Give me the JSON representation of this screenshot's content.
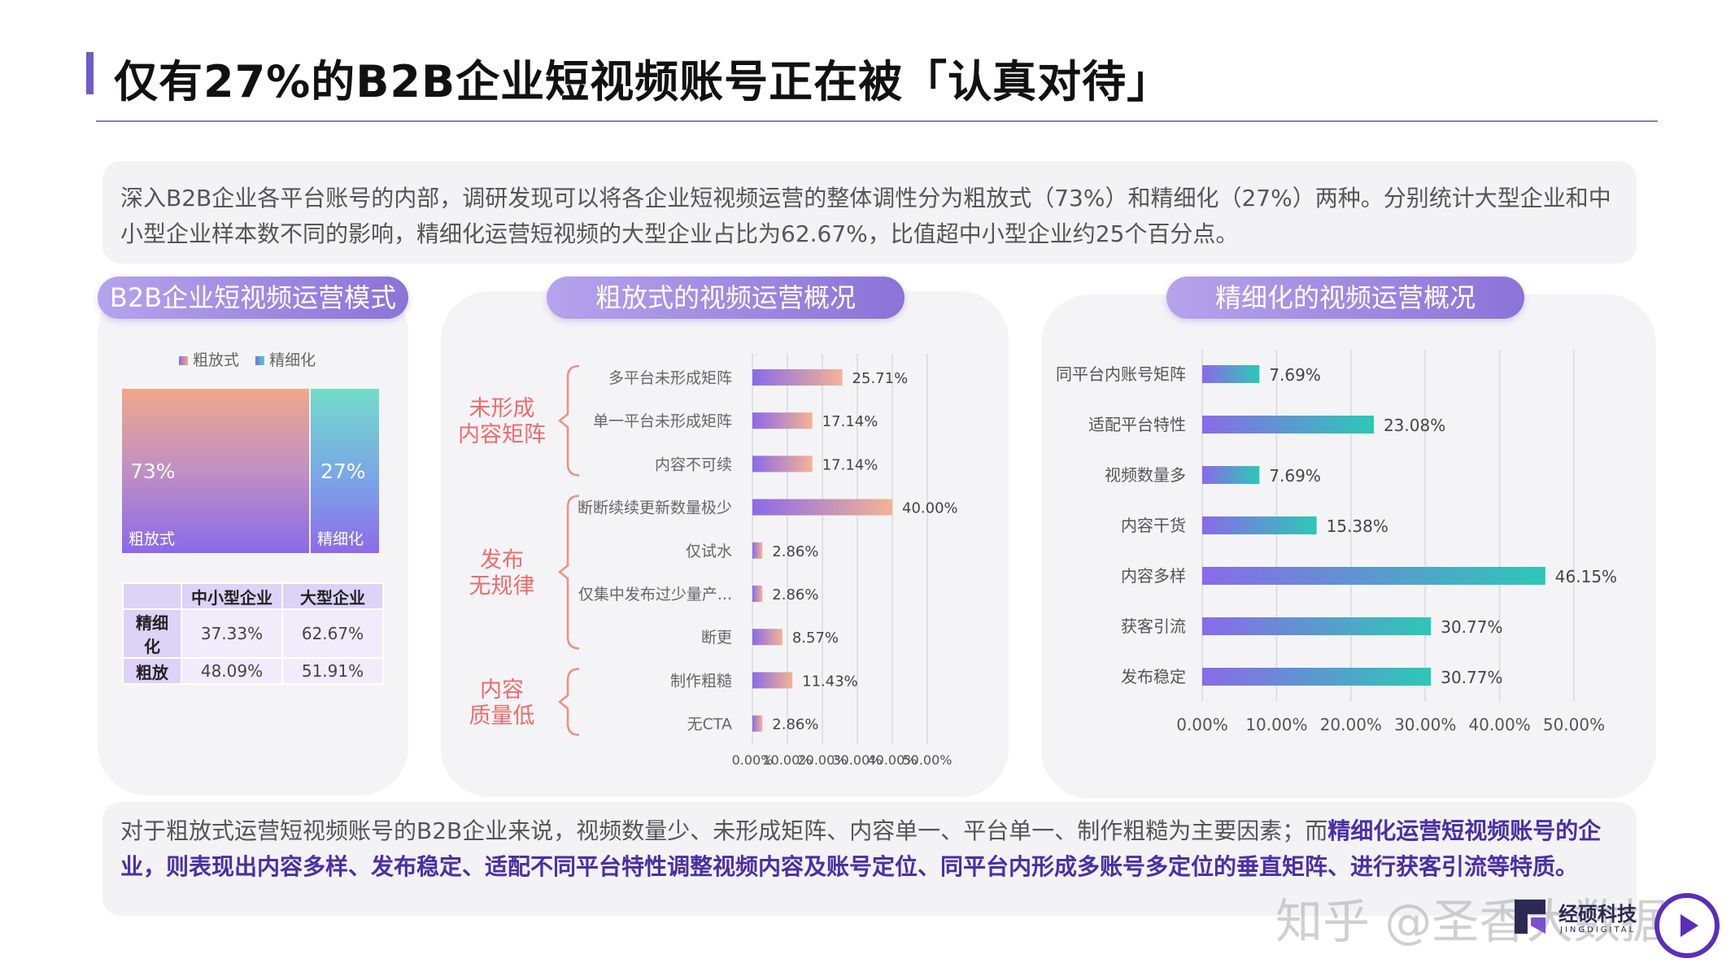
{
  "title": "仅有27%的B2B企业短视频账号正在被「认真对待」",
  "intro": "深入B2B企业各平台账号的内部，调研发现可以将各企业短视频运营的整体调性分为粗放式（73%）和精细化（27%）两种。分别统计大型企业和中小型企业样本数不同的影响，精细化运营短视频的大型企业占比为62.67%，比值超中小型企业约25个百分点。",
  "panels": {
    "left_title": "B2B企业短视频运营模式",
    "mid_title": "粗放式的视频运营概况",
    "right_title": "精细化的视频运营概况"
  },
  "colors": {
    "accent": "#6e5bc9",
    "rough_start": "#8a6ae9",
    "rough_end": "#f5b394",
    "fine_start": "#8a6ae9",
    "fine_end": "#2cc8b6"
  },
  "bottom": {
    "normal": "对于粗放式运营短视频账号的B2B企业来说，视频数量少、未形成矩阵、内容单一、平台单一、制作粗糙为主要因素；而",
    "highlight": "精细化运营短视频账号的企业，则表现出内容多样、发布稳定、适配不同平台特性调整视频内容及账号定位、同平台内形成多账号多定位的垂直矩阵、进行获客引流等特质。"
  },
  "watermark": "知乎 @圣香大数据",
  "logo": {
    "name": "经硕科技",
    "sub": "JINGDIGITAL"
  },
  "chart_data": [
    {
      "type": "treemap",
      "legend": [
        "粗放式",
        "精细化"
      ],
      "items": [
        {
          "name": "粗放式",
          "value": 73,
          "label": "73%"
        },
        {
          "name": "精细化",
          "value": 27,
          "label": "27%"
        }
      ],
      "table": {
        "columns": [
          "中小型企业",
          "大型企业"
        ],
        "rows": [
          {
            "name": "精细化",
            "values": [
              "37.33%",
              "62.67%"
            ]
          },
          {
            "name": "粗放",
            "values": [
              "48.09%",
              "51.91%"
            ]
          }
        ]
      }
    },
    {
      "type": "bar",
      "orientation": "horizontal",
      "title": "粗放式的视频运营概况",
      "groups": [
        {
          "name": "未形成内容矩阵",
          "lines": [
            "未形成",
            "内容矩阵"
          ],
          "categories": [
            "多平台未形成矩阵",
            "单一平台未形成矩阵",
            "内容不可续"
          ]
        },
        {
          "name": "发布无规律",
          "lines": [
            "发布",
            "无规律"
          ],
          "categories": [
            "断断续续更新数量极少",
            "仅试水",
            "仅集中发布过少量产...",
            "断更"
          ]
        },
        {
          "name": "内容质量低",
          "lines": [
            "内容",
            "质量低"
          ],
          "categories": [
            "制作粗糙",
            "无CTA"
          ]
        }
      ],
      "categories": [
        "多平台未形成矩阵",
        "单一平台未形成矩阵",
        "内容不可续",
        "断断续续更新数量极少",
        "仅试水",
        "仅集中发布过少量产...",
        "断更",
        "制作粗糙",
        "无CTA"
      ],
      "values": [
        25.71,
        17.14,
        17.14,
        40.0,
        2.86,
        2.86,
        8.57,
        11.43,
        2.86
      ],
      "labels": [
        "25.71%",
        "17.14%",
        "17.14%",
        "40.00%",
        "2.86%",
        "2.86%",
        "8.57%",
        "11.43%",
        "2.86%"
      ],
      "xlim": [
        0,
        50
      ],
      "xticks": [
        "0.00%",
        "10.00%",
        "20.00%",
        "30.00%",
        "40.00%",
        "50.00%"
      ],
      "grid": true
    },
    {
      "type": "bar",
      "orientation": "horizontal",
      "title": "精细化的视频运营概况",
      "categories": [
        "同平台内账号矩阵",
        "适配平台特性",
        "视频数量多",
        "内容干货",
        "内容多样",
        "获客引流",
        "发布稳定"
      ],
      "values": [
        7.69,
        23.08,
        7.69,
        15.38,
        46.15,
        30.77,
        30.77
      ],
      "labels": [
        "7.69%",
        "23.08%",
        "7.69%",
        "15.38%",
        "46.15%",
        "30.77%",
        "30.77%"
      ],
      "xlim": [
        0,
        50
      ],
      "xticks": [
        "0.00%",
        "10.00%",
        "20.00%",
        "30.00%",
        "40.00%",
        "50.00%"
      ],
      "grid": true
    }
  ]
}
